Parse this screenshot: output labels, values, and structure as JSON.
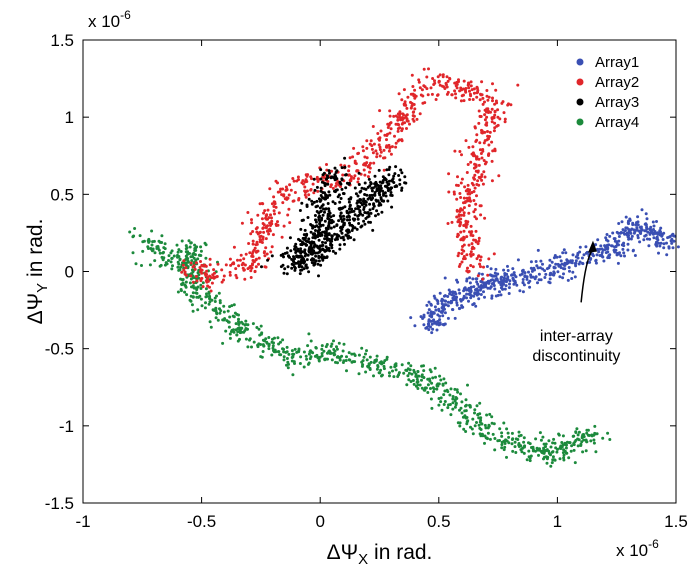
{
  "chart_data": {
    "type": "scatter",
    "title": "",
    "xlabel_prefix": "ΔΨ",
    "xlabel_sub": "X",
    "xlabel_suffix": " in rad.",
    "ylabel_prefix": "ΔΨ",
    "ylabel_sub": "Y",
    "ylabel_suffix": " in rad.",
    "x_multiplier": "x 10",
    "x_exponent": "-6",
    "y_multiplier": "x 10",
    "y_exponent": "-6",
    "xlim": [
      -1,
      1.5
    ],
    "ylim": [
      -1.5,
      1.5
    ],
    "xticks": [
      -1,
      -0.5,
      0,
      0.5,
      1,
      1.5
    ],
    "xtick_labels": [
      "-1",
      "-0.5",
      "0",
      "0.5",
      "1",
      "1.5"
    ],
    "yticks": [
      1.5,
      1,
      0.5,
      0,
      -0.5,
      -1,
      -1.5
    ],
    "ytick_labels": [
      "1.5",
      "1",
      "0.5",
      "0",
      "-0.5",
      "-1",
      "-1.5"
    ],
    "grid": false,
    "legend_position": "top-right",
    "units_scale": "1e-6 rad",
    "series": [
      {
        "name": "Array1",
        "color": "#3a4fb3",
        "trace": [
          [
            0.47,
            -0.37
          ],
          [
            0.5,
            -0.22
          ],
          [
            0.55,
            -0.18
          ],
          [
            0.62,
            -0.14
          ],
          [
            0.68,
            -0.1
          ],
          [
            0.75,
            -0.05
          ],
          [
            0.82,
            -0.08
          ],
          [
            0.88,
            -0.02
          ],
          [
            0.95,
            0.0
          ],
          [
            1.02,
            0.04
          ],
          [
            1.1,
            0.08
          ],
          [
            1.17,
            0.11
          ],
          [
            1.24,
            0.14
          ],
          [
            1.28,
            0.22
          ],
          [
            1.33,
            0.3
          ],
          [
            1.38,
            0.27
          ],
          [
            1.43,
            0.21
          ],
          [
            1.48,
            0.2
          ]
        ],
        "count": 650
      },
      {
        "name": "Array2",
        "color": "#e0262a",
        "trace": [
          [
            -0.55,
            0.02
          ],
          [
            -0.48,
            -0.06
          ],
          [
            -0.42,
            0.02
          ],
          [
            -0.37,
            -0.01
          ],
          [
            -0.3,
            0.04
          ],
          [
            -0.26,
            0.14
          ],
          [
            -0.24,
            0.28
          ],
          [
            -0.2,
            0.38
          ],
          [
            -0.15,
            0.5
          ],
          [
            -0.1,
            0.55
          ],
          [
            -0.02,
            0.58
          ],
          [
            0.07,
            0.6
          ],
          [
            0.15,
            0.65
          ],
          [
            0.22,
            0.78
          ],
          [
            0.28,
            0.9
          ],
          [
            0.33,
            0.98
          ],
          [
            0.37,
            1.04
          ],
          [
            0.4,
            1.14
          ],
          [
            0.44,
            1.2
          ],
          [
            0.48,
            1.25
          ],
          [
            0.55,
            1.22
          ],
          [
            0.62,
            1.18
          ],
          [
            0.7,
            1.16
          ],
          [
            0.73,
            1.1
          ],
          [
            0.71,
            0.95
          ],
          [
            0.68,
            0.8
          ],
          [
            0.65,
            0.6
          ],
          [
            0.62,
            0.45
          ],
          [
            0.6,
            0.3
          ],
          [
            0.62,
            0.12
          ],
          [
            0.66,
            0.0
          ]
        ],
        "count": 850
      },
      {
        "name": "Array3",
        "color": "#000000",
        "trace": [
          [
            -0.16,
            0.02
          ],
          [
            -0.1,
            0.08
          ],
          [
            -0.04,
            0.18
          ],
          [
            0.02,
            0.25
          ],
          [
            0.06,
            0.3
          ],
          [
            0.11,
            0.38
          ],
          [
            0.14,
            0.45
          ],
          [
            0.2,
            0.5
          ],
          [
            0.26,
            0.57
          ],
          [
            0.3,
            0.6
          ],
          [
            0.24,
            0.46
          ],
          [
            0.16,
            0.32
          ],
          [
            0.08,
            0.2
          ],
          [
            0.0,
            0.12
          ],
          [
            -0.08,
            0.04
          ],
          [
            0.04,
            0.55
          ],
          [
            0.1,
            0.65
          ]
        ],
        "count": 650
      },
      {
        "name": "Array4",
        "color": "#1c8a3c",
        "trace": [
          [
            -0.75,
            0.22
          ],
          [
            -0.68,
            0.12
          ],
          [
            -0.6,
            0.05
          ],
          [
            -0.54,
            0.18
          ],
          [
            -0.52,
            -0.02
          ],
          [
            -0.56,
            -0.1
          ],
          [
            -0.48,
            -0.2
          ],
          [
            -0.42,
            -0.27
          ],
          [
            -0.35,
            -0.35
          ],
          [
            -0.28,
            -0.42
          ],
          [
            -0.2,
            -0.5
          ],
          [
            -0.12,
            -0.56
          ],
          [
            -0.03,
            -0.55
          ],
          [
            0.07,
            -0.52
          ],
          [
            0.16,
            -0.57
          ],
          [
            0.26,
            -0.62
          ],
          [
            0.35,
            -0.65
          ],
          [
            0.43,
            -0.68
          ],
          [
            0.5,
            -0.76
          ],
          [
            0.56,
            -0.82
          ],
          [
            0.62,
            -0.92
          ],
          [
            0.68,
            -1.0
          ],
          [
            0.75,
            -1.08
          ],
          [
            0.82,
            -1.1
          ],
          [
            0.9,
            -1.17
          ],
          [
            0.97,
            -1.2
          ],
          [
            1.03,
            -1.12
          ],
          [
            1.1,
            -1.09
          ],
          [
            1.17,
            -1.04
          ]
        ],
        "count": 900
      }
    ],
    "annotation": {
      "line1": "inter-array",
      "line2": "discontinuity",
      "arrow_from": [
        1.1,
        -0.2
      ],
      "arrow_to": [
        1.15,
        0.2
      ]
    }
  }
}
